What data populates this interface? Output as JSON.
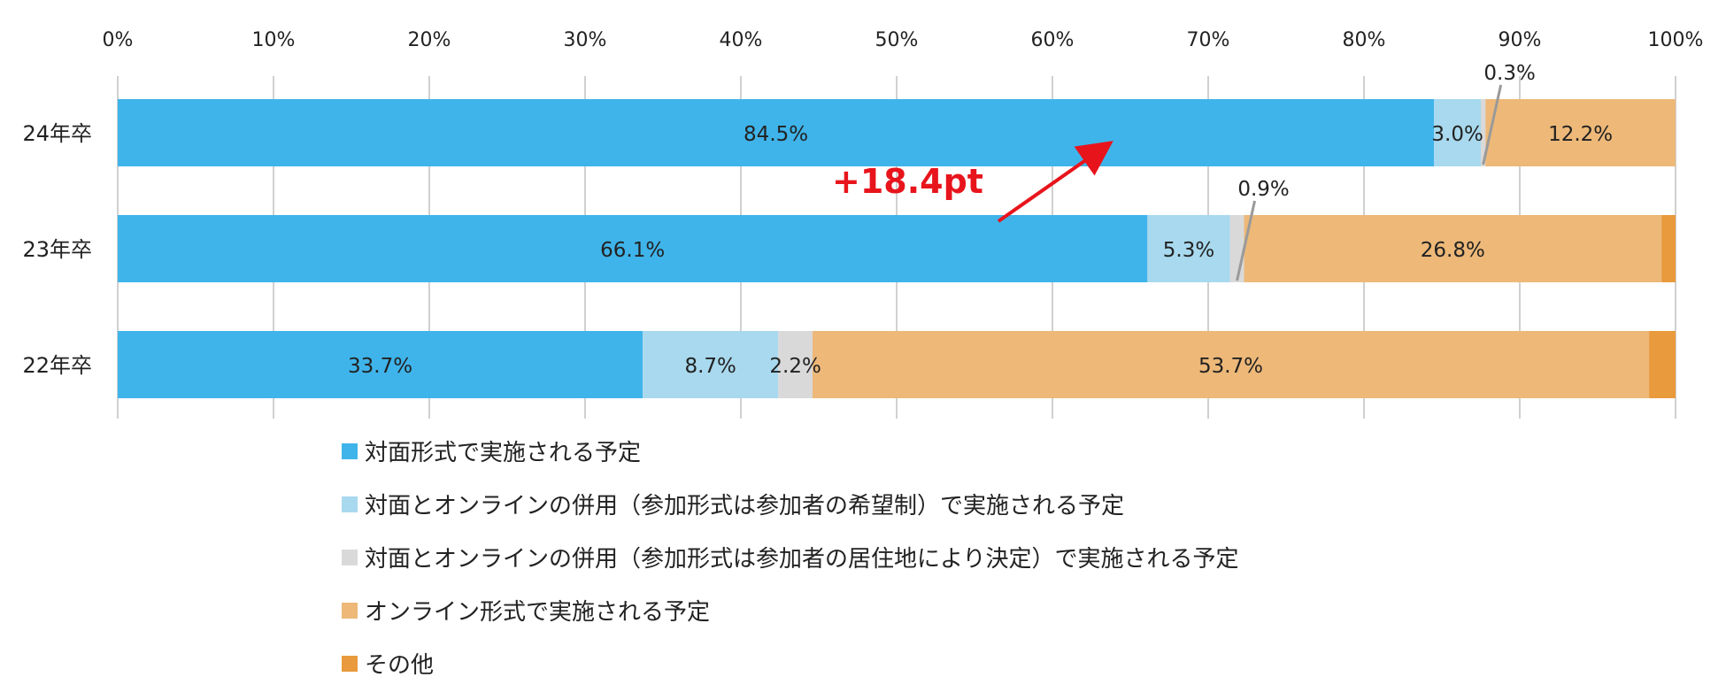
{
  "chart_data": {
    "type": "bar",
    "orientation": "horizontal",
    "stacked": true,
    "percent": true,
    "xlim": [
      0,
      100
    ],
    "x_ticks": [
      "0%",
      "10%",
      "20%",
      "30%",
      "40%",
      "50%",
      "60%",
      "70%",
      "80%",
      "90%",
      "100%"
    ],
    "grid": true,
    "legend_position": "bottom",
    "categories": [
      "24年卒",
      "23年卒",
      "22年卒"
    ],
    "series": [
      {
        "name": "対面形式で実施される予定",
        "color": "#3fb4ea",
        "values": [
          84.5,
          66.1,
          33.7
        ],
        "labels": [
          "84.5%",
          "66.1%",
          "33.7%"
        ]
      },
      {
        "name": "対面とオンラインの併用（参加形式は参加者の希望制）で実施される予定",
        "color": "#a8d9ee",
        "values": [
          3.0,
          5.3,
          8.7
        ],
        "labels": [
          "3.0%",
          "5.3%",
          "8.7%"
        ]
      },
      {
        "name": "対面とオンラインの併用（参加形式は参加者の居住地により決定）で実施される予定",
        "color": "#d9d9d9",
        "values": [
          0.3,
          0.9,
          2.2
        ],
        "labels": [
          "0.3%",
          "0.9%",
          "2.2%"
        ]
      },
      {
        "name": "オンライン形式で実施される予定",
        "color": "#edb878",
        "values": [
          12.2,
          26.8,
          53.7
        ],
        "labels": [
          "12.2%",
          "26.8%",
          "53.7%"
        ]
      },
      {
        "name": "その他",
        "color": "#e89a3c",
        "values": [
          0.0,
          0.9,
          1.7
        ],
        "labels": [
          "",
          "",
          ""
        ]
      }
    ],
    "annotation": {
      "text": "+18.4pt",
      "color": "#e8141c"
    }
  }
}
